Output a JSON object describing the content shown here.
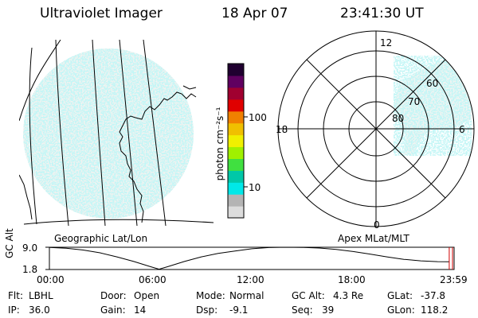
{
  "header": {
    "instrument": "Ultraviolet Imager",
    "date": "18 Apr 07",
    "time": "23:41:30 UT"
  },
  "colorbar": {
    "unit_label": "photon cm⁻²s⁻¹",
    "ticks": [
      "100",
      "10"
    ],
    "tick_values": [
      100,
      10
    ],
    "scale": "log",
    "range": [
      1.6,
      600
    ],
    "colors": [
      "#dcdcdc",
      "#b4b4b4",
      "#00e8e8",
      "#00c8a8",
      "#40e040",
      "#a0f000",
      "#f0f000",
      "#f0c000",
      "#f08000",
      "#e00000",
      "#a00030",
      "#600060",
      "#200030"
    ]
  },
  "panels": {
    "left_label": "Geographic Lat/Lon",
    "right_label": "Apex MLat/MLT"
  },
  "polar": {
    "mlt_labels": {
      "top": "12",
      "left": "18",
      "right": "6",
      "bottom": "0"
    },
    "lat_labels": [
      "60",
      "70",
      "80"
    ],
    "lat_values": [
      60,
      70,
      80
    ]
  },
  "altitude_plot": {
    "ylabel": "GC Alt",
    "yticks": [
      "9.0",
      "1.8"
    ],
    "ylim": [
      1.8,
      9.0
    ],
    "xticks": [
      "00:00",
      "06:00",
      "12:00",
      "18:00",
      "23:59"
    ],
    "marker_time_hours": 23.69,
    "series": {
      "hours": [
        0,
        1,
        2,
        3,
        4,
        5,
        6,
        6.5,
        7,
        8,
        9,
        10,
        11,
        12,
        13,
        14,
        15,
        16,
        17,
        18,
        19,
        20,
        21,
        22,
        23,
        23.69
      ],
      "alt_re": [
        8.95,
        8.7,
        8.1,
        7.2,
        5.9,
        4.4,
        2.7,
        1.9,
        2.7,
        4.4,
        5.9,
        7.0,
        7.8,
        8.5,
        8.9,
        9.0,
        8.95,
        8.75,
        8.3,
        7.6,
        6.8,
        5.9,
        5.1,
        4.6,
        4.35,
        4.3
      ]
    }
  },
  "info": {
    "row1": [
      {
        "key": "Flt:",
        "value": "LBHL"
      },
      {
        "key": "Door:",
        "value": "Open"
      },
      {
        "key": "Mode:",
        "value": "Normal"
      },
      {
        "key": "GC Alt:",
        "value": "4.3 Re"
      },
      {
        "key": "GLat:",
        "value": "-37.8"
      }
    ],
    "row2": [
      {
        "key": "IP:",
        "value": "36.0"
      },
      {
        "key": "Gain:",
        "value": "14"
      },
      {
        "key": "Dsp:",
        "value": "-9.1"
      },
      {
        "key": "Seq:",
        "value": "39"
      },
      {
        "key": "GLon:",
        "value": "118.2"
      }
    ]
  }
}
